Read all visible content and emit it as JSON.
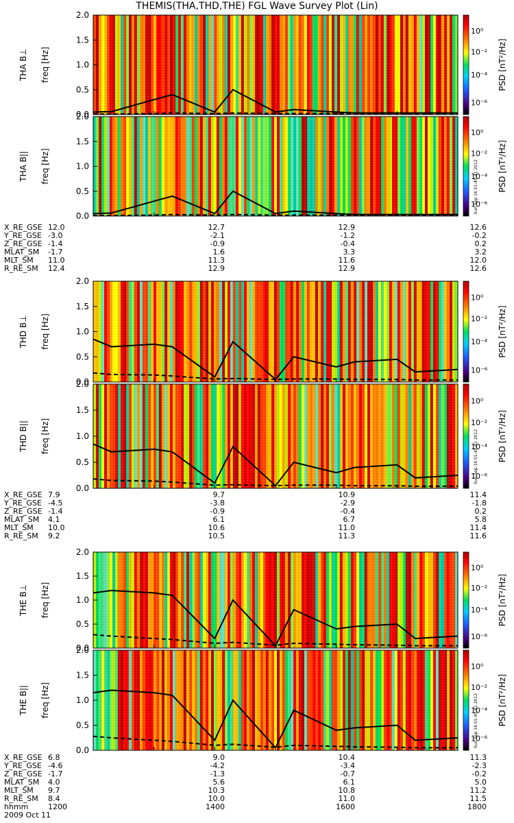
{
  "title": "THEMIS(THA,THD,THE) FGL Wave Survey Plot (Lin)",
  "colorbar": {
    "label": "PSD [nT²/Hz]",
    "ticks": [
      "10⁰",
      "10⁻²",
      "10⁻⁴",
      "10⁻⁶"
    ],
    "colors": [
      "#000000",
      "#4b0082",
      "#1e90ff",
      "#00e0ff",
      "#00e060",
      "#ffff00",
      "#ff8000",
      "#ff0000",
      "#c00000"
    ]
  },
  "stamp": "Sun Sep 16 01:45:41 2012",
  "y_ticks": [
    "0.0",
    "0.5",
    "1.0",
    "1.5",
    "2.0"
  ],
  "time_ticks": [
    "1200",
    "1400",
    "1600",
    "1800"
  ],
  "ephem_labels": [
    "X_RE_GSE",
    "Y_RE_GSE",
    "Z_RE_GSE",
    "MLAT_SM",
    "MLT_SM",
    "R_RE_SM"
  ],
  "probes": [
    {
      "id": "THA",
      "panels": [
        {
          "label": "THA B⊥",
          "ylabel": "freq [Hz]"
        },
        {
          "label": "THA B||",
          "ylabel": "freq [Hz]"
        }
      ],
      "ephem": [
        [
          "12.0",
          "12.7",
          "12.9",
          "12.6"
        ],
        [
          "-3.0",
          "-2.1",
          "-1.2",
          "-0.2"
        ],
        [
          "-1.4",
          "-0.9",
          "-0.4",
          "0.2"
        ],
        [
          "-1.7",
          "1.6",
          "3.3",
          "3.2"
        ],
        [
          "11.0",
          "11.3",
          "11.6",
          "12.0"
        ],
        [
          "12.4",
          "12.9",
          "12.9",
          "12.6"
        ]
      ]
    },
    {
      "id": "THD",
      "panels": [
        {
          "label": "THD B⊥",
          "ylabel": "freq [Hz]"
        },
        {
          "label": "THD B||",
          "ylabel": "freq [Hz]"
        }
      ],
      "ephem": [
        [
          "7.9",
          "9.7",
          "10.9",
          "11.4"
        ],
        [
          "-4.5",
          "-3.8",
          "-2.9",
          "-1.8"
        ],
        [
          "-1.4",
          "-0.9",
          "-0.4",
          "0.2"
        ],
        [
          "4.1",
          "6.1",
          "6.7",
          "5.8"
        ],
        [
          "10.0",
          "10.6",
          "11.0",
          "11.4"
        ],
        [
          "9.2",
          "10.5",
          "11.3",
          "11.6"
        ]
      ]
    },
    {
      "id": "THE",
      "panels": [
        {
          "label": "THE B⊥",
          "ylabel": "freq [Hz]"
        },
        {
          "label": "THE B||",
          "ylabel": "freq [Hz]"
        }
      ],
      "ephem": [
        [
          "6.8",
          "9.0",
          "10.4",
          "11.3"
        ],
        [
          "-4.6",
          "-4.2",
          "-3.4",
          "-2.3"
        ],
        [
          "-1.7",
          "-1.3",
          "-0.7",
          "-0.2"
        ],
        [
          "4.0",
          "5.6",
          "6.1",
          "5.0"
        ],
        [
          "9.7",
          "10.3",
          "10.8",
          "11.2"
        ],
        [
          "8.4",
          "10.0",
          "11.0",
          "11.5"
        ]
      ]
    }
  ],
  "time_label": "hhmm",
  "date": "2009 Oct 11",
  "chart_data": {
    "type": "heatmap",
    "title": "THEMIS(THA,THD,THE) FGL Wave Survey Plot (Lin)",
    "x": {
      "label": "hhmm",
      "ticks": [
        "1200",
        "1400",
        "1600",
        "1800"
      ]
    },
    "y": {
      "label": "freq [Hz]",
      "range": [
        0,
        2.0
      ]
    },
    "z": {
      "label": "PSD [nT²/Hz]",
      "scale": "log",
      "range": [
        1e-07,
        10.0
      ]
    },
    "line_times_hhmm": [
      1200,
      1230,
      1300,
      1330,
      1400,
      1430,
      1500,
      1530,
      1600,
      1630,
      1700,
      1730,
      1800
    ],
    "series": [
      {
        "name": "THA",
        "solid": [
          0.05,
          0.06,
          0.3,
          0.4,
          0.05,
          0.5,
          0.05,
          0.1,
          0.05,
          0.03,
          0.03,
          0.03,
          0.03
        ],
        "dashed": [
          0.01,
          0.01,
          0.02,
          0.03,
          0.02,
          0.03,
          0.02,
          0.02,
          0.02,
          0.02,
          0.02,
          0.02,
          0.02
        ]
      },
      {
        "name": "THD",
        "solid": [
          0.85,
          0.7,
          0.75,
          0.7,
          0.1,
          0.8,
          0.05,
          0.5,
          0.3,
          0.4,
          0.45,
          0.2,
          0.25
        ],
        "dashed": [
          0.18,
          0.15,
          0.14,
          0.12,
          0.06,
          0.07,
          0.05,
          0.06,
          0.06,
          0.05,
          0.05,
          0.04,
          0.04
        ]
      },
      {
        "name": "THE",
        "solid": [
          1.15,
          1.2,
          1.15,
          1.1,
          0.2,
          1.0,
          0.05,
          0.8,
          0.4,
          0.45,
          0.5,
          0.2,
          0.25
        ],
        "dashed": [
          0.28,
          0.25,
          0.2,
          0.18,
          0.1,
          0.12,
          0.06,
          0.1,
          0.08,
          0.07,
          0.06,
          0.05,
          0.05
        ]
      }
    ]
  }
}
